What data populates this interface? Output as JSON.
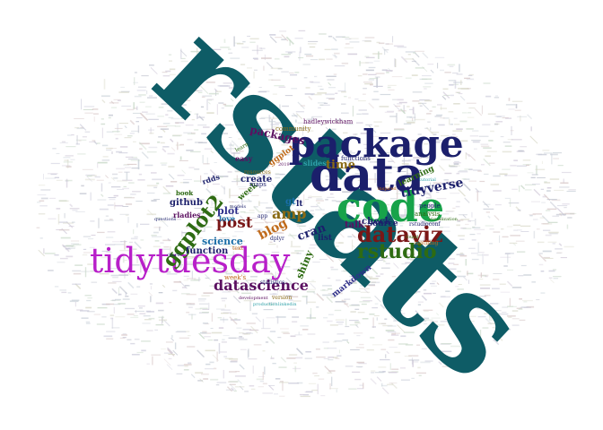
{
  "words": [
    {
      "text": "rstats",
      "color": "#0e5c66"
    },
    {
      "text": "package",
      "color": "#1b1f6b"
    },
    {
      "text": "data",
      "color": "#1b1f6b"
    },
    {
      "text": "code",
      "color": "#17a34a"
    },
    {
      "text": "tidytuesday",
      "color": "#b81fc9"
    },
    {
      "text": "dataviz",
      "color": "#7a1616"
    },
    {
      "text": "rstudio",
      "color": "#2e6b12"
    },
    {
      "text": "ggplot2",
      "color": "#2e6b12"
    },
    {
      "text": "datascience",
      "color": "#5b1060"
    },
    {
      "text": "post",
      "color": "#7a1616"
    },
    {
      "text": "amp",
      "color": "#8a6a14"
    },
    {
      "text": "blog",
      "color": "#c06a1a"
    },
    {
      "text": "tidyverse",
      "color": "#1b1f6b"
    },
    {
      "text": "time",
      "color": "#8a6a14"
    },
    {
      "text": "packages",
      "color": "#5b1060"
    },
    {
      "text": "science",
      "color": "#1a6ea8"
    },
    {
      "text": "function",
      "color": "#1b1f6b"
    },
    {
      "text": "plot",
      "color": "#2e2e8a"
    },
    {
      "text": "shiny",
      "color": "#2e6b12"
    },
    {
      "text": "cran",
      "color": "#1b1f6b"
    },
    {
      "text": "github",
      "color": "#1b1f6b"
    },
    {
      "text": "markdown",
      "color": "#2e2e8a"
    },
    {
      "text": "check",
      "color": "#1b1f6b"
    },
    {
      "text": "source",
      "color": "#1b1f6b"
    },
    {
      "text": "talk",
      "color": "#5b1060"
    },
    {
      "text": "create",
      "color": "#1b1f6b"
    },
    {
      "text": "week",
      "color": "#2e6b12"
    },
    {
      "text": "ggplot",
      "color": "#c06a1a"
    },
    {
      "text": "easy",
      "color": "#5b1060"
    },
    {
      "text": "learning",
      "color": "#2e6b12"
    },
    {
      "text": "hadleywickham",
      "color": "#5b1060"
    },
    {
      "text": "community",
      "color": "#8a6a14"
    },
    {
      "text": "slides",
      "color": "#2ea0a8"
    },
    {
      "text": "functions",
      "color": "#1b1f6b"
    },
    {
      "text": "love",
      "color": "#1a6ea8"
    },
    {
      "text": "rladies",
      "color": "#5b1060"
    },
    {
      "text": "rdds",
      "color": "#1b1f6b"
    },
    {
      "text": "book",
      "color": "#2e6b12"
    },
    {
      "text": "maps",
      "color": "#1b1f6b"
    },
    {
      "text": "gt",
      "color": "#1a6ea8"
    },
    {
      "text": "lt",
      "color": "#1b1f6b"
    },
    {
      "text": "list",
      "color": "#1b1f6b"
    },
    {
      "text": "people",
      "color": "#1b1f6b"
    },
    {
      "text": "analysis",
      "color": "#2e6b12"
    },
    {
      "text": "week's",
      "color": "#c06a1a"
    },
    {
      "text": "statistics",
      "color": "#1b1f6b"
    },
    {
      "text": "version",
      "color": "#8a6a14"
    },
    {
      "text": "development",
      "color": "#5b1060"
    },
    {
      "text": "models",
      "color": "#1b1f6b"
    },
    {
      "text": "teaching",
      "color": "#c06a1a"
    },
    {
      "text": "rstudioconf",
      "color": "#1b1f6b"
    },
    {
      "text": "tutorial",
      "color": "#2ea0a8"
    },
    {
      "text": "found",
      "color": "#2e6b12"
    },
    {
      "text": "inspired",
      "color": "#c06a1a"
    },
    {
      "text": "resources",
      "color": "#8a6a14"
    },
    {
      "text": "learn",
      "color": "#2e6b12"
    },
    {
      "text": "2019",
      "color": "#5b1060"
    },
    {
      "text": "text",
      "color": "#c06a1a"
    },
    {
      "text": "app",
      "color": "#1b1f6b"
    },
    {
      "text": "dplyr",
      "color": "#1b1f6b"
    },
    {
      "text": "visualization",
      "color": "#2e6b12"
    },
    {
      "text": "questions",
      "color": "#1b1f6b"
    },
    {
      "text": "charts",
      "color": "#1b1f6b"
    },
    {
      "text": "linkedin",
      "color": "#2ea0a8"
    },
    {
      "text": "production",
      "color": "#2ea0a8"
    }
  ]
}
